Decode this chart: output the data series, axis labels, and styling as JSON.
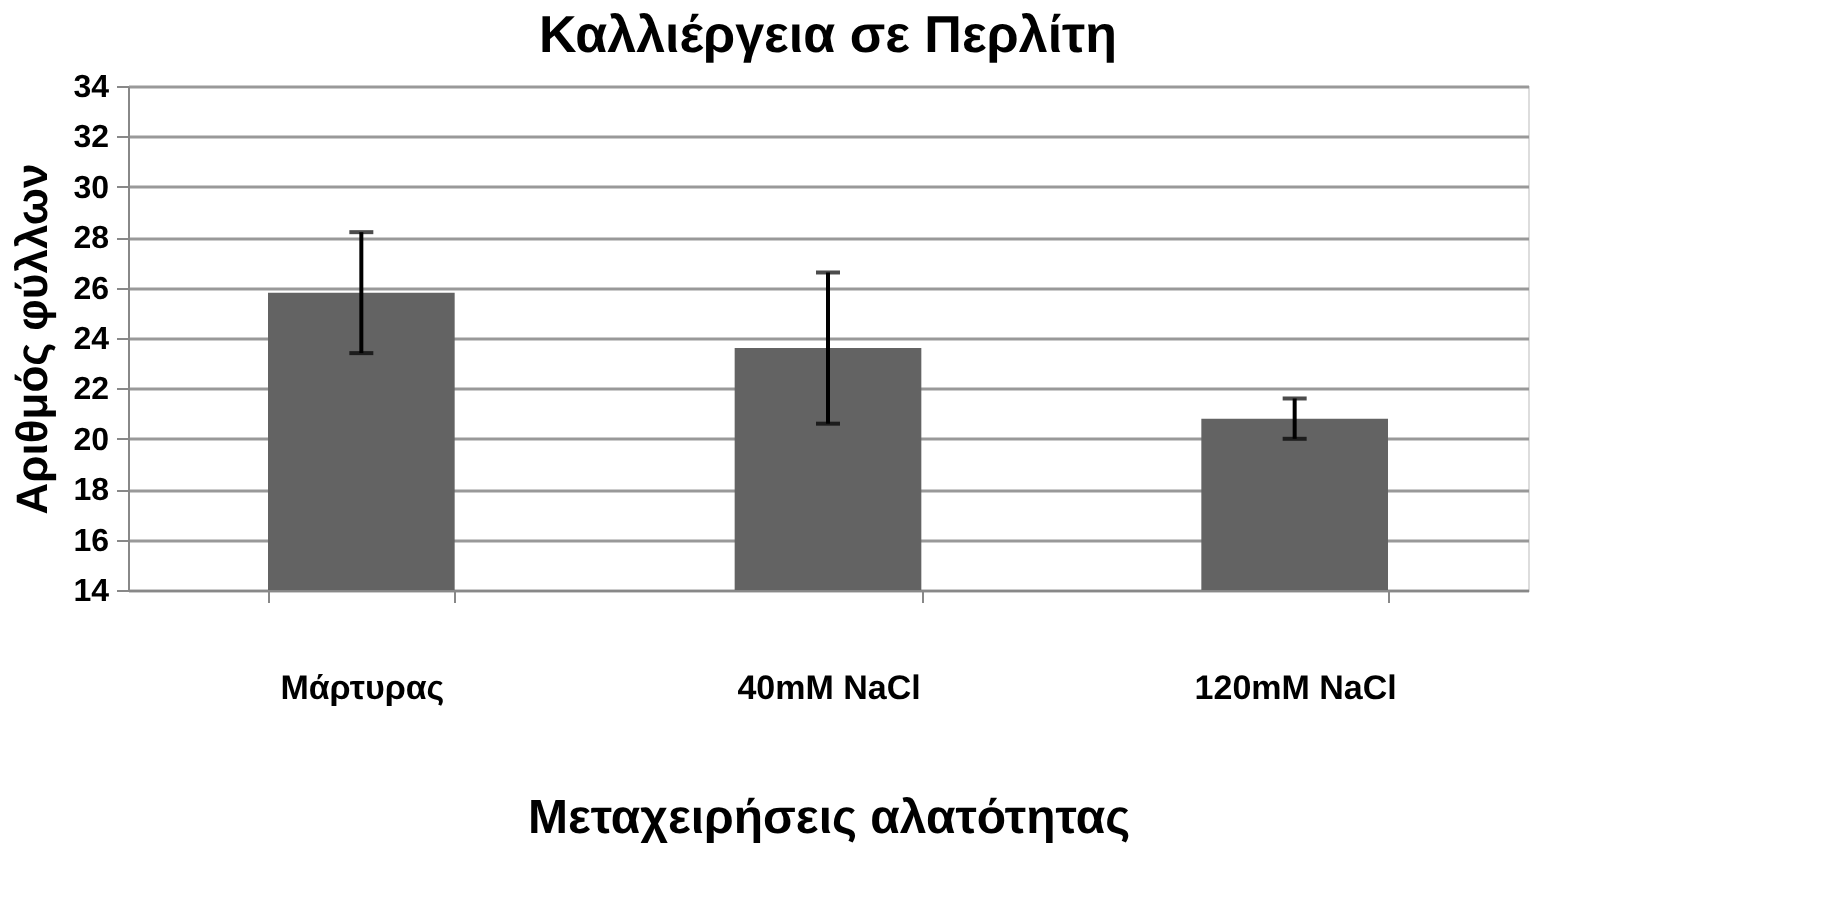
{
  "chart_data": {
    "type": "bar",
    "title": "Καλλιέργεια σε Περλίτη",
    "xlabel": "Μεταχειρήσεις αλατότητας",
    "ylabel": "Αριθμός φύλλων",
    "categories": [
      "Μάρτυρας",
      "40mM NaCl",
      "120mM NaCl"
    ],
    "values": [
      25.8,
      23.6,
      20.8
    ],
    "errors": [
      2.4,
      3.0,
      0.8
    ],
    "color": "#636363",
    "ylim": [
      14,
      34
    ],
    "yticks": [
      14,
      16,
      18,
      20,
      22,
      24,
      26,
      28,
      30,
      32,
      34
    ],
    "grid": "y"
  }
}
